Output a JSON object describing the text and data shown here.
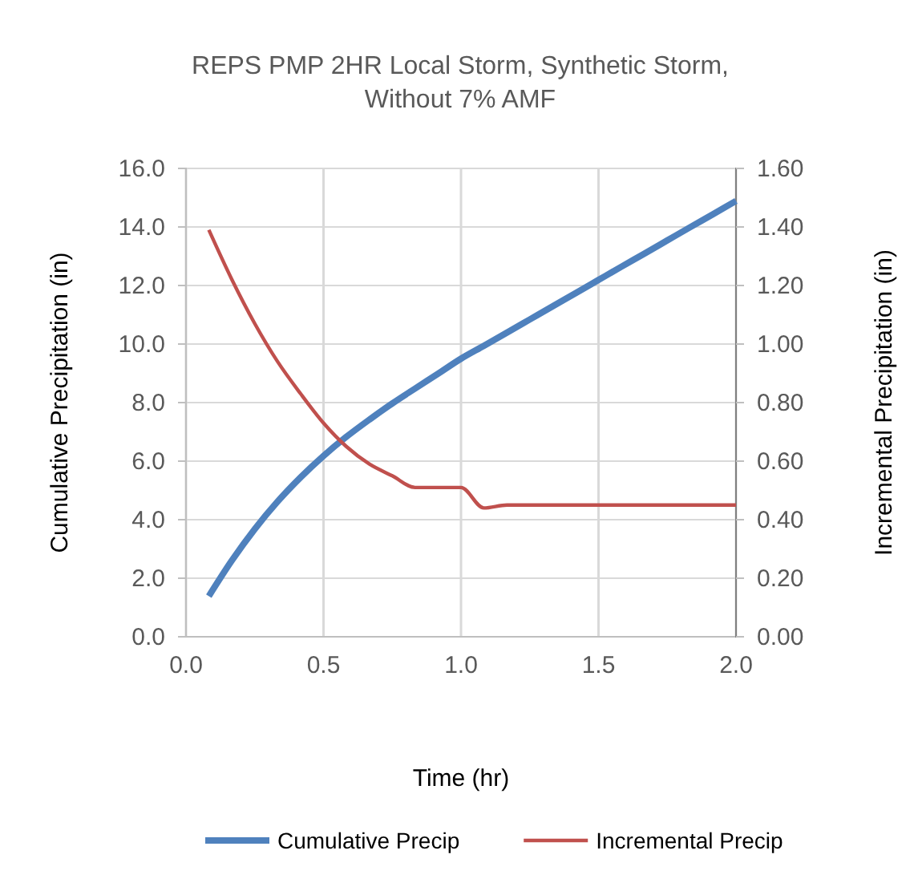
{
  "chart_data": {
    "type": "line",
    "title": "REPS PMP 2HR Local Storm, Synthetic Storm, Without 7% AMF",
    "xlabel": "Time (hr)",
    "ylabel": "Cumulative Precipitation (in)",
    "y2label": "Incremental Precipitation (in)",
    "x": [
      0.083,
      0.167,
      0.25,
      0.333,
      0.417,
      0.5,
      0.583,
      0.667,
      0.75,
      0.833,
      0.917,
      1.0,
      1.083,
      1.167,
      1.25,
      1.333,
      1.417,
      1.5,
      1.583,
      1.667,
      1.75,
      1.833,
      1.917,
      2.0
    ],
    "series": [
      {
        "name": "Cumulative Precip",
        "color": "#4f81bd",
        "values": [
          1.39,
          2.61,
          3.68,
          4.62,
          5.45,
          6.18,
          6.83,
          7.42,
          7.97,
          8.48,
          8.99,
          9.5,
          9.94,
          10.39,
          10.84,
          11.29,
          11.74,
          12.19,
          12.64,
          13.09,
          13.54,
          13.99,
          14.44,
          14.89
        ]
      },
      {
        "name": "Incremental Precip",
        "color": "#c0504d",
        "axis": "y2",
        "values": [
          1.39,
          1.22,
          1.07,
          0.94,
          0.83,
          0.73,
          0.65,
          0.59,
          0.55,
          0.51,
          0.51,
          0.51,
          0.44,
          0.45,
          0.45,
          0.45,
          0.45,
          0.45,
          0.45,
          0.45,
          0.45,
          0.45,
          0.45,
          0.45
        ]
      }
    ],
    "xlim": [
      0,
      2
    ],
    "xticks": [
      {
        "value": 0,
        "label": "0.0"
      },
      {
        "value": 0.5,
        "label": "0.5"
      },
      {
        "value": 1,
        "label": "1.0"
      },
      {
        "value": 1.5,
        "label": "1.5"
      },
      {
        "value": 2,
        "label": "2.0"
      }
    ],
    "ylim": [
      0,
      16
    ],
    "yticks": [
      {
        "value": 0,
        "label": "0.0"
      },
      {
        "value": 2,
        "label": "2.0"
      },
      {
        "value": 4,
        "label": "4.0"
      },
      {
        "value": 6,
        "label": "6.0"
      },
      {
        "value": 8,
        "label": "8.0"
      },
      {
        "value": 10,
        "label": "10.0"
      },
      {
        "value": 12,
        "label": "12.0"
      },
      {
        "value": 14,
        "label": "14.0"
      },
      {
        "value": 16,
        "label": "16.0"
      }
    ],
    "y2lim": [
      0,
      1.6
    ],
    "y2ticks": [
      {
        "value": 0,
        "label": "0.00"
      },
      {
        "value": 0.2,
        "label": "0.20"
      },
      {
        "value": 0.4,
        "label": "0.40"
      },
      {
        "value": 0.6,
        "label": "0.60"
      },
      {
        "value": 0.8,
        "label": "0.80"
      },
      {
        "value": 1,
        "label": "1.00"
      },
      {
        "value": 1.2,
        "label": "1.20"
      },
      {
        "value": 1.4,
        "label": "1.40"
      },
      {
        "value": 1.6,
        "label": "1.60"
      }
    ],
    "grid": true,
    "legend": "bottom",
    "marker": "none",
    "line_style": "solid"
  }
}
